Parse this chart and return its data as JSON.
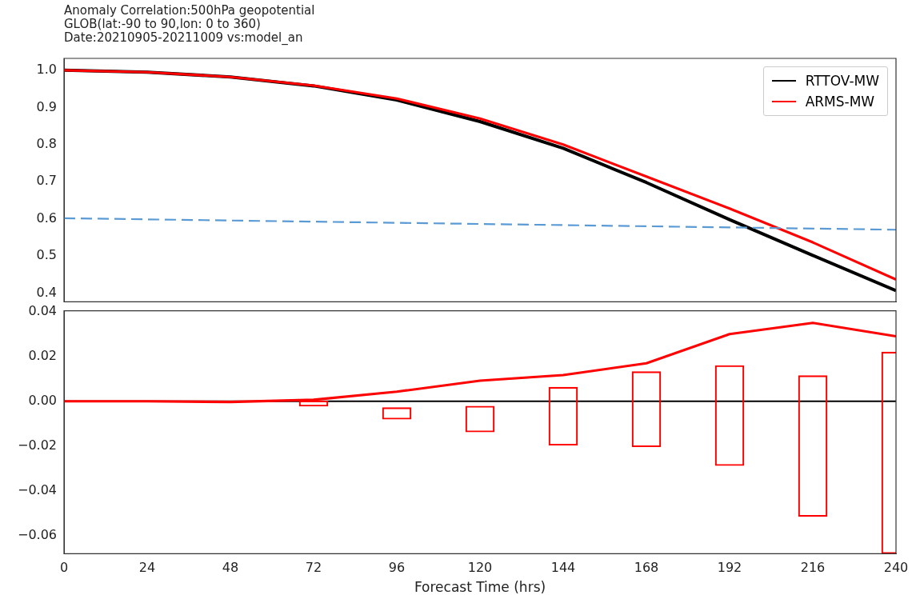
{
  "chart_data": [
    {
      "type": "line",
      "title": "Anomaly Correlation:500hPa  geopotential",
      "subtitle": "GLOB(lat:-90 to 90,lon: 0 to 360)\nDate:20210905-20211009  vs:model_an",
      "x": [
        0,
        24,
        48,
        72,
        96,
        120,
        144,
        168,
        192,
        216,
        240
      ],
      "series": [
        {
          "name": "RTTOV-MW",
          "color": "#000000",
          "values": [
            1.0,
            0.995,
            0.982,
            0.958,
            0.92,
            0.862,
            0.79,
            0.698,
            0.598,
            0.502,
            0.407
          ]
        },
        {
          "name": "ARMS-MW",
          "color": "#ff0000",
          "values": [
            1.0,
            0.995,
            0.982,
            0.959,
            0.924,
            0.87,
            0.8,
            0.714,
            0.628,
            0.537,
            0.437
          ]
        },
        {
          "color": "#5b9bd5",
          "line_style": "dashed",
          "x": [
            0,
            240
          ],
          "values": [
            0.602,
            0.571
          ]
        }
      ],
      "xlim": [
        0,
        240
      ],
      "ylim": [
        0.377,
        1.032
      ],
      "yticks": [
        0.4,
        0.5,
        0.6,
        0.7,
        0.8,
        0.9,
        {
          "value": 1.0,
          "label": "1.0"
        }
      ],
      "tick_labels": "y",
      "legend": "top right",
      "grid": false,
      "marker": "none"
    },
    {
      "type": "line",
      "xlabel": "Forecast Time (hrs)",
      "x": [
        0,
        24,
        48,
        72,
        96,
        120,
        144,
        168,
        192,
        216,
        240
      ],
      "series": [
        {
          "color": "#ff0000",
          "values": [
            0,
            0,
            -0.0003,
            0.0007,
            0.0043,
            0.0092,
            0.0117,
            0.017,
            0.03,
            0.035,
            0.029
          ]
        },
        {
          "type": "bar",
          "color": "#ff0000",
          "x": [
            72,
            96,
            120,
            144,
            168,
            192,
            216,
            240
          ],
          "base": [
            -0.0022,
            -0.008,
            -0.0137,
            -0.0196,
            -0.0203,
            -0.0287,
            -0.0514,
            -0.068
          ],
          "values": [
            0.0024,
            0.0052,
            0.0116,
            0.0259,
            0.0336,
            0.0447,
            0.0629,
            0.09
          ]
        }
      ],
      "ref_lines": [
        {
          "axis": "y",
          "value": 0,
          "color": "#000000"
        }
      ],
      "xlim": [
        0,
        240
      ],
      "xticks": [
        0,
        24,
        48,
        72,
        96,
        120,
        144,
        168,
        192,
        216,
        240
      ],
      "ylim": [
        -0.068,
        0.0404
      ],
      "yticks": [
        {
          "value": -0.06,
          "label": "−0.06"
        },
        {
          "value": -0.04,
          "label": "−0.04"
        },
        {
          "value": -0.02,
          "label": "−0.02"
        },
        {
          "value": 0,
          "label": "0.00"
        },
        {
          "value": 0.02,
          "label": "0.02"
        },
        {
          "value": 0.04,
          "label": "0.04"
        }
      ],
      "grid": false,
      "marker": "none"
    }
  ]
}
